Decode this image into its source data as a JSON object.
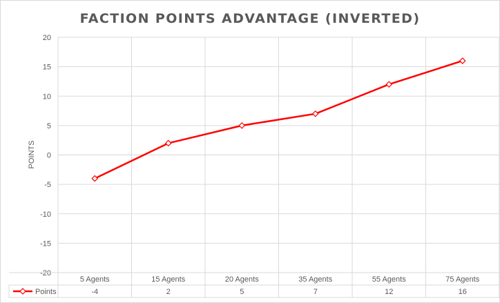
{
  "chart_data": {
    "type": "line",
    "title": "FACTION POINTS ADVANTAGE (INVERTED)",
    "ylabel": "POINTS",
    "xlabel": "",
    "ylim": [
      -20,
      20
    ],
    "y_ticks": [
      "20",
      "15",
      "10",
      "5",
      "0",
      "-5",
      "-10",
      "-15",
      "-20"
    ],
    "categories": [
      "5 Agents",
      "15 Agents",
      "20 Agents",
      "35 Agents",
      "55 Agents",
      "75 Agents"
    ],
    "series": [
      {
        "name": "Points",
        "values": [
          -4,
          2,
          5,
          7,
          12,
          16
        ],
        "value_labels": [
          "-4",
          "2",
          "5",
          "7",
          "12",
          "16"
        ],
        "color": "#ff0000"
      }
    ],
    "grid": true,
    "legend": "data-table",
    "marker": "diamond"
  }
}
